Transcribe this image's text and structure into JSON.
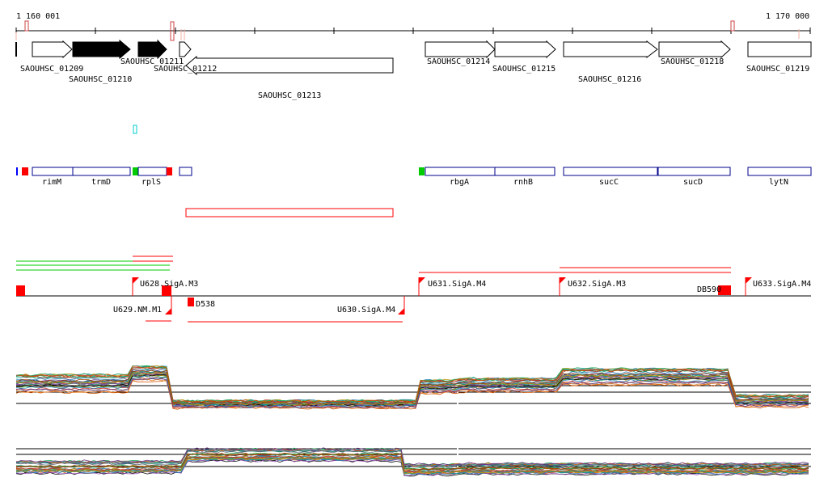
{
  "ruler": {
    "start_label": "1 160 001",
    "end_label": "1 170 000"
  },
  "genes": [
    {
      "label": "SAOUHSC_01209"
    },
    {
      "label": "SAOUHSC_01210"
    },
    {
      "label": "SAOUHSC_01211"
    },
    {
      "label": "SAOUHSC_01212"
    },
    {
      "label": "SAOUHSC_01213"
    },
    {
      "label": "SAOUHSC_01214"
    },
    {
      "label": "SAOUHSC_01215"
    },
    {
      "label": "SAOUHSC_01216"
    },
    {
      "label": "SAOUHSC_01218"
    },
    {
      "label": "SAOUHSC_01219"
    }
  ],
  "gene_names": [
    "rimM",
    "trmD",
    "rplS",
    "rbgA",
    "rnhB",
    "sucC",
    "sucD",
    "lytN"
  ],
  "promoters": [
    {
      "label": "U628.SigA.M3"
    },
    {
      "label": "U629.NM.M1"
    },
    {
      "label": "D538"
    },
    {
      "label": "U630.SigA.M4"
    },
    {
      "label": "U631.SigA.M4"
    },
    {
      "label": "U632.SigA.M3"
    },
    {
      "label": "DB590"
    },
    {
      "label": "U633.SigA.M4"
    }
  ],
  "colors": {
    "gene_fill": "#ffffff",
    "gene_highlight": "#000000",
    "name_box": "#00008b",
    "red": "#ff0000",
    "green": "#00cc00",
    "cyan": "#00cccc",
    "blue": "#0000ff"
  }
}
